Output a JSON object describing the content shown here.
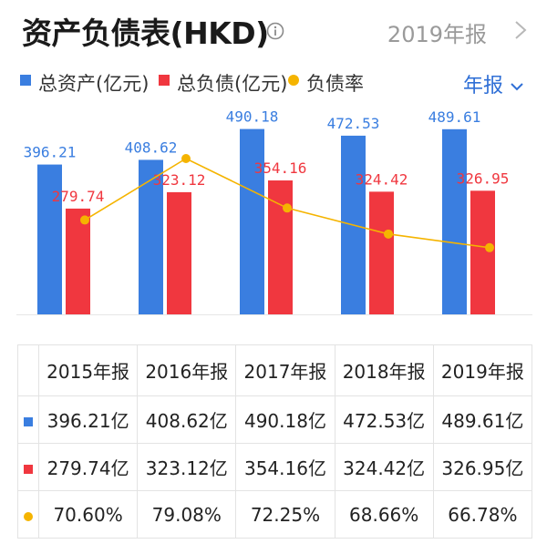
{
  "header": {
    "title": "资产负债表(HKD)",
    "period": "2019年报"
  },
  "legend": {
    "assets": "总资产(亿元)",
    "liabilities": "总负债(亿元)",
    "ratio": "负债率"
  },
  "dropdown": {
    "label": "年报"
  },
  "colors": {
    "assets": "#3a7ee0",
    "liabilities": "#f0373f",
    "ratio": "#f5b400"
  },
  "chart_data": {
    "type": "bar",
    "categories": [
      "2015年报",
      "2016年报",
      "2017年报",
      "2018年报",
      "2019年报"
    ],
    "series": [
      {
        "name": "总资产(亿元)",
        "type": "bar",
        "values": [
          396.21,
          408.62,
          490.18,
          472.53,
          489.61
        ],
        "labels": [
          "396.21",
          "408.62",
          "490.18",
          "472.53",
          "489.61"
        ]
      },
      {
        "name": "总负债(亿元)",
        "type": "bar",
        "values": [
          279.74,
          323.12,
          354.16,
          324.42,
          326.95
        ],
        "labels": [
          "279.74",
          "323.12",
          "354.16",
          "324.42",
          "326.95"
        ]
      },
      {
        "name": "负债率",
        "type": "line",
        "values": [
          70.6,
          79.08,
          72.25,
          68.66,
          66.78
        ]
      }
    ],
    "legend_position": "top-left",
    "grid": false
  },
  "table": {
    "headers": [
      "2015年报",
      "2016年报",
      "2017年报",
      "2018年报",
      "2019年报"
    ],
    "rows": [
      {
        "marker": "square",
        "color_key": "assets",
        "cells": [
          "396.21亿",
          "408.62亿",
          "490.18亿",
          "472.53亿",
          "489.61亿"
        ]
      },
      {
        "marker": "square",
        "color_key": "liabilities",
        "cells": [
          "279.74亿",
          "323.12亿",
          "354.16亿",
          "324.42亿",
          "326.95亿"
        ]
      },
      {
        "marker": "dot",
        "color_key": "ratio",
        "cells": [
          "70.60%",
          "79.08%",
          "72.25%",
          "68.66%",
          "66.78%"
        ]
      }
    ]
  }
}
